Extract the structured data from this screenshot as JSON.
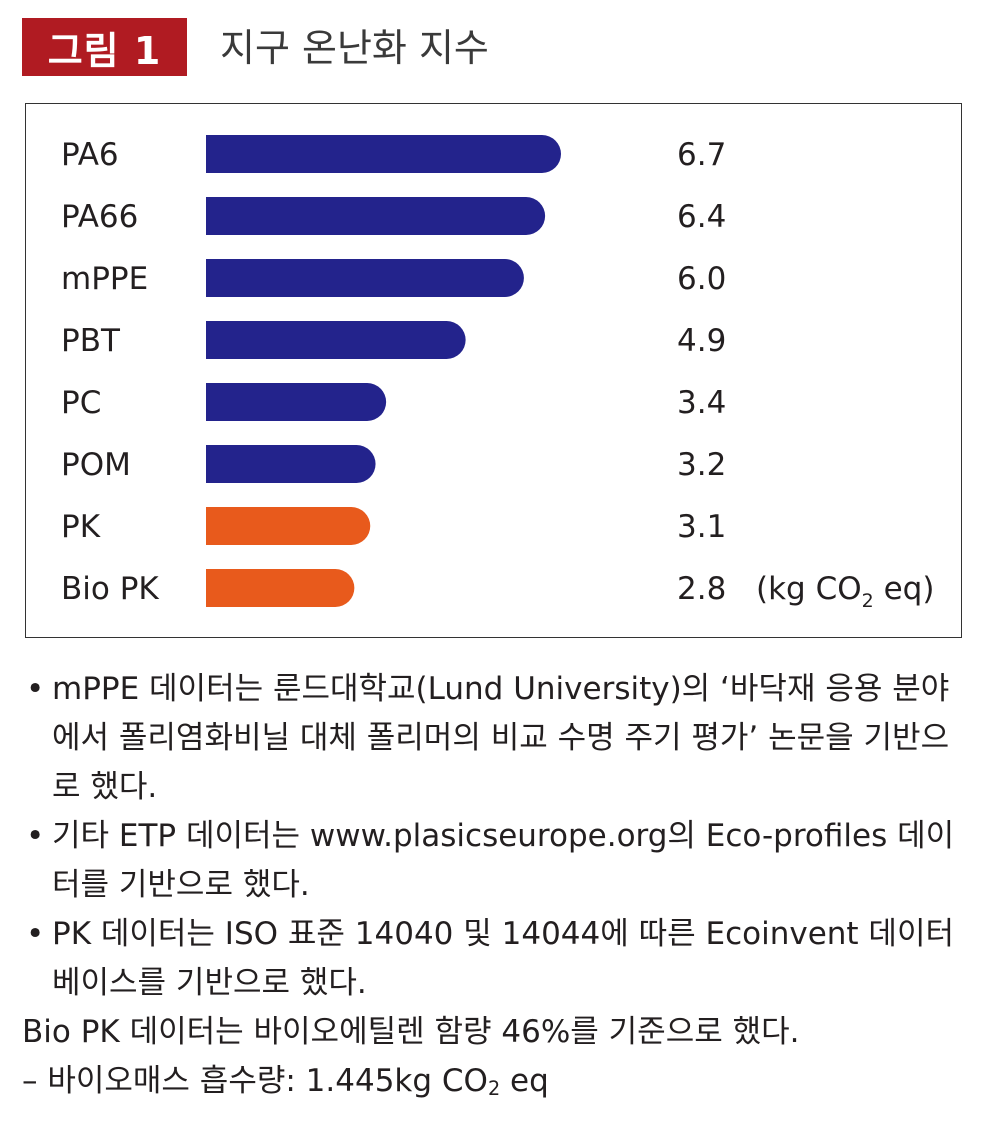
{
  "header": {
    "figure_label": "그림 1",
    "title": "지구 온난화 지수"
  },
  "chart_data": {
    "type": "bar",
    "orientation": "horizontal",
    "categories": [
      "PA6",
      "PA66",
      "mPPE",
      "PBT",
      "PC",
      "POM",
      "PK",
      "Bio PK"
    ],
    "values": [
      6.7,
      6.4,
      6.0,
      4.9,
      3.4,
      3.2,
      3.1,
      2.8
    ],
    "value_labels": [
      "6.7",
      "6.4",
      "6.0",
      "4.9",
      "3.4",
      "3.2",
      "3.1",
      "2.8"
    ],
    "unit_label": {
      "prefix": "(kg CO",
      "subscript": "2",
      "suffix": " eq)"
    },
    "colors": {
      "default": "#23238c",
      "highlight": "#e85a1c"
    },
    "highlight_categories": [
      "PK",
      "Bio PK"
    ],
    "xlim": [
      0,
      6.7
    ],
    "grid": false,
    "legend": "none"
  },
  "notes": {
    "bullets": [
      {
        "mark": "•",
        "text": "mPPE 데이터는 룬드대학교(Lund University)의 ‘바닥재 응용 분야에서 폴리염화비닐 대체 폴리머의 비교 수명 주기 평가’ 논문을 기반으로 했다."
      },
      {
        "mark": "•",
        "text": "기타 ETP 데이터는 www.plasicseurope.org의 Eco-profiles 데이터를 기반으로 했다."
      },
      {
        "mark": "•",
        "text": "PK 데이터는 ISO 표준 14040 및 14044에 따른 Ecoinvent 데이터베이스를 기반으로 했다."
      }
    ],
    "bio_pk": "Bio PK 데이터는 바이오에틸렌 함량 46%를 기준으로 했다.",
    "absorption": {
      "prefix": "– 바이오매스 흡수량: 1.445kg CO",
      "subscript": "2",
      "suffix": " eq"
    }
  }
}
